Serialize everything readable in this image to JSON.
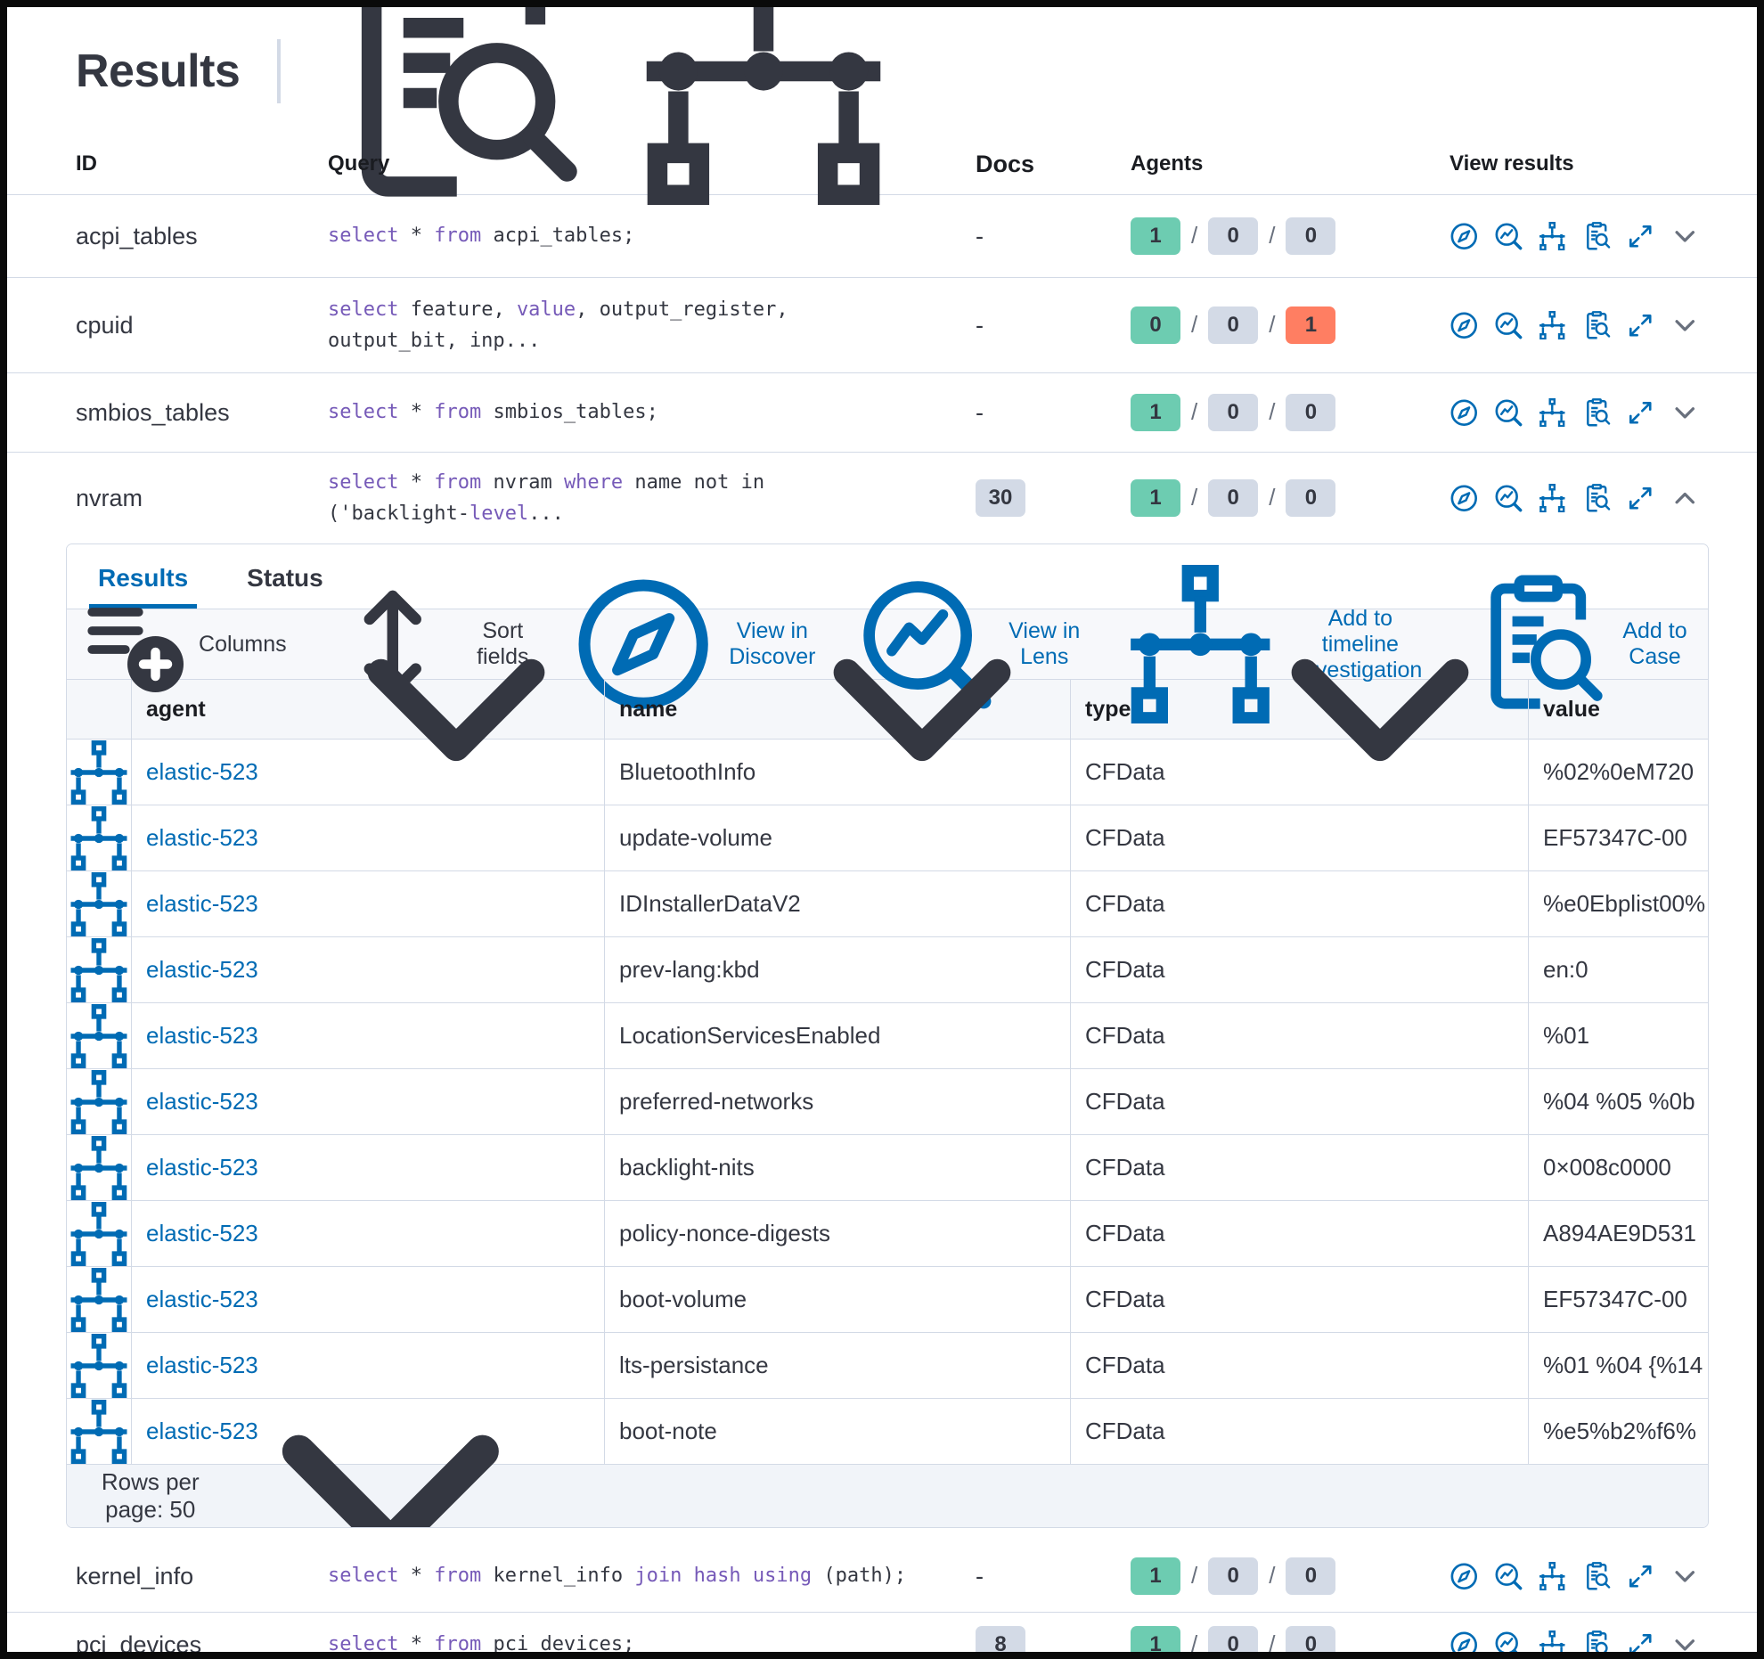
{
  "page": {
    "title": "Results"
  },
  "colors": {
    "primary": "#006bb4",
    "sql_keyword": "#765ab8",
    "badge_success": "#6dccb1",
    "badge_default": "#d3dae6",
    "badge_danger": "#ff7e62"
  },
  "queries_table": {
    "headers": {
      "id": "ID",
      "query": "Query",
      "docs": "Docs",
      "agents": "Agents",
      "view": "View results"
    },
    "rows": [
      {
        "id": "acpi_tables",
        "query": [
          {
            "t": "select",
            "k": 1
          },
          {
            "t": " * "
          },
          {
            "t": "from",
            "k": 1
          },
          {
            "t": " acpi_tables;"
          }
        ],
        "docs": "-",
        "docs_badge": false,
        "agents": [
          {
            "v": "1",
            "c": "success"
          },
          {
            "v": "0",
            "c": "default"
          },
          {
            "v": "0",
            "c": "default"
          }
        ],
        "expanded": false,
        "height": "rh-92"
      },
      {
        "id": "cpuid",
        "query": [
          {
            "t": "select",
            "k": 1
          },
          {
            "t": " feature, "
          },
          {
            "t": "value",
            "k": 1
          },
          {
            "t": ", output_register,\noutput_bit, inp..."
          }
        ],
        "docs": "-",
        "docs_badge": false,
        "agents": [
          {
            "v": "0",
            "c": "success"
          },
          {
            "v": "0",
            "c": "default"
          },
          {
            "v": "1",
            "c": "danger"
          }
        ],
        "expanded": false,
        "height": "rh-106"
      },
      {
        "id": "smbios_tables",
        "query": [
          {
            "t": "select",
            "k": 1
          },
          {
            "t": " * "
          },
          {
            "t": "from",
            "k": 1
          },
          {
            "t": " smbios_tables;"
          }
        ],
        "docs": "-",
        "docs_badge": false,
        "agents": [
          {
            "v": "1",
            "c": "success"
          },
          {
            "v": "0",
            "c": "default"
          },
          {
            "v": "0",
            "c": "default"
          }
        ],
        "expanded": false,
        "height": "rh-88"
      },
      {
        "id": "nvram",
        "query": [
          {
            "t": "select",
            "k": 1
          },
          {
            "t": " * "
          },
          {
            "t": "from",
            "k": 1
          },
          {
            "t": " nvram "
          },
          {
            "t": "where",
            "k": 1
          },
          {
            "t": " name not in\n('backlight-"
          },
          {
            "t": "level",
            "k": 1
          },
          {
            "t": "..."
          }
        ],
        "docs": "30",
        "docs_badge": true,
        "agents": [
          {
            "v": "1",
            "c": "success"
          },
          {
            "v": "0",
            "c": "default"
          },
          {
            "v": "0",
            "c": "default"
          }
        ],
        "expanded": true,
        "height": "rh-102"
      },
      {
        "id": "kernel_info",
        "query": [
          {
            "t": "select",
            "k": 1
          },
          {
            "t": " * "
          },
          {
            "t": "from",
            "k": 1
          },
          {
            "t": " kernel_info "
          },
          {
            "t": "join",
            "k": 1
          },
          {
            "t": " "
          },
          {
            "t": "hash",
            "k": 1
          },
          {
            "t": " "
          },
          {
            "t": "using",
            "k": 1
          },
          {
            "t": " (path);"
          }
        ],
        "docs": "-",
        "docs_badge": false,
        "agents": [
          {
            "v": "1",
            "c": "success"
          },
          {
            "v": "0",
            "c": "default"
          },
          {
            "v": "0",
            "c": "default"
          }
        ],
        "expanded": false,
        "height": "rh-80"
      },
      {
        "id": "pci_devices",
        "query": [
          {
            "t": "select",
            "k": 1
          },
          {
            "t": " * "
          },
          {
            "t": "from",
            "k": 1
          },
          {
            "t": " pci_devices;"
          }
        ],
        "docs": "8",
        "docs_badge": true,
        "agents": [
          {
            "v": "1",
            "c": "success"
          },
          {
            "v": "0",
            "c": "default"
          },
          {
            "v": "0",
            "c": "default"
          }
        ],
        "expanded": false,
        "height": "rh-72"
      }
    ]
  },
  "detail_panel": {
    "tabs": [
      {
        "label": "Results",
        "active": true
      },
      {
        "label": "Status",
        "active": false
      }
    ],
    "toolbar": [
      {
        "label": "Columns",
        "icon": "columns",
        "style": "text"
      },
      {
        "label": "Sort fields",
        "icon": "sort",
        "style": "text"
      },
      {
        "label": "View in Discover",
        "icon": "discover",
        "style": "primary"
      },
      {
        "label": "View in Lens",
        "icon": "lens",
        "style": "primary"
      },
      {
        "label": "Add to timeline investigation",
        "icon": "timeline",
        "style": "primary"
      },
      {
        "label": "Add to Case",
        "icon": "inspect",
        "style": "primary"
      }
    ],
    "grid": {
      "columns": [
        {
          "label": "agent",
          "sortable": true
        },
        {
          "label": "name",
          "sortable": true
        },
        {
          "label": "type",
          "sortable": true
        },
        {
          "label": "value",
          "sortable": false
        }
      ],
      "rows": [
        {
          "agent": "elastic-523",
          "name": "BluetoothInfo",
          "type": "CFData",
          "value": "%02%0eM720"
        },
        {
          "agent": "elastic-523",
          "name": "update-volume",
          "type": "CFData",
          "value": "EF57347C-00"
        },
        {
          "agent": "elastic-523",
          "name": "IDInstallerDataV2",
          "type": "CFData",
          "value": "%e0Ebplist00%"
        },
        {
          "agent": "elastic-523",
          "name": "prev-lang:kbd",
          "type": "CFData",
          "value": "en:0"
        },
        {
          "agent": "elastic-523",
          "name": "LocationServicesEnabled",
          "type": "CFData",
          "value": "%01"
        },
        {
          "agent": "elastic-523",
          "name": "preferred-networks",
          "type": "CFData",
          "value": "%04 %05 %0b"
        },
        {
          "agent": "elastic-523",
          "name": "backlight-nits",
          "type": "CFData",
          "value": "0×008c0000"
        },
        {
          "agent": "elastic-523",
          "name": "policy-nonce-digests",
          "type": "CFData",
          "value": "A894AE9D531"
        },
        {
          "agent": "elastic-523",
          "name": "boot-volume",
          "type": "CFData",
          "value": "EF57347C-00"
        },
        {
          "agent": "elastic-523",
          "name": "lts-persistance",
          "type": "CFData",
          "value": "%01 %04 {%14"
        },
        {
          "agent": "elastic-523",
          "name": "boot-note",
          "type": "CFData",
          "value": "%e5%b2%f6%"
        }
      ]
    },
    "pagination": {
      "label": "Rows per page: 50"
    }
  }
}
